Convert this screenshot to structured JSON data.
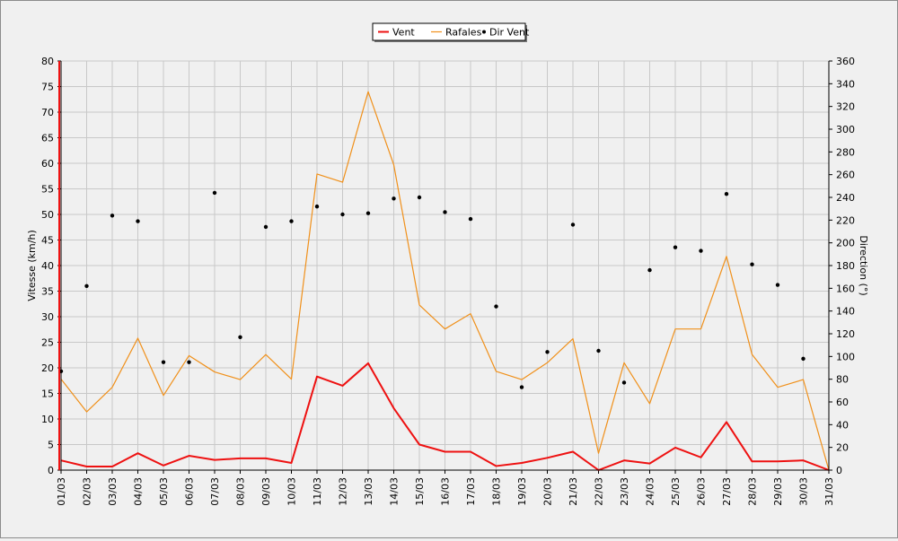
{
  "colors": {
    "vent": "#ee1111",
    "rafales": "#f0901a",
    "dir": "#000000",
    "grid": "#c8c8c8",
    "plot_bg": "#f0f0f0"
  },
  "chart_data": {
    "type": "line",
    "categories": [
      "01/03",
      "02/03",
      "03/03",
      "04/03",
      "05/03",
      "06/03",
      "07/03",
      "08/03",
      "09/03",
      "10/03",
      "11/03",
      "12/03",
      "13/03",
      "14/03",
      "15/03",
      "16/03",
      "17/03",
      "18/03",
      "19/03",
      "20/03",
      "21/03",
      "22/03",
      "23/03",
      "24/03",
      "25/03",
      "26/03",
      "27/03",
      "28/03",
      "29/03",
      "30/03",
      "31/03"
    ],
    "ylabel": "Vitesse (km/h)",
    "ylabel_right": "Direction (°)",
    "ylim": [
      0,
      80
    ],
    "ylim_right": [
      0,
      360
    ],
    "yticks": [
      0,
      5,
      10,
      15,
      20,
      25,
      30,
      35,
      40,
      45,
      50,
      55,
      60,
      65,
      70,
      75,
      80
    ],
    "yticks_right": [
      0,
      20,
      40,
      60,
      80,
      100,
      120,
      140,
      160,
      180,
      200,
      220,
      240,
      260,
      280,
      300,
      320,
      340,
      360
    ],
    "grid": true,
    "legend_position": "top-center",
    "series": [
      {
        "name": "Vent",
        "axis": "left",
        "style": "line",
        "values": [
          1.9,
          0.7,
          0.7,
          3.3,
          0.9,
          2.8,
          2.0,
          2.3,
          2.3,
          1.4,
          18.3,
          16.5,
          20.9,
          12.1,
          5.0,
          3.6,
          3.6,
          0.8,
          1.4,
          2.4,
          3.6,
          0.0,
          1.9,
          1.3,
          4.4,
          2.5,
          9.4,
          1.7,
          1.7,
          1.9,
          0.0
        ]
      },
      {
        "name": "Rafales",
        "axis": "left",
        "style": "line",
        "values": [
          17.8,
          11.4,
          16.2,
          25.8,
          14.6,
          22.4,
          19.2,
          17.7,
          22.6,
          17.8,
          57.9,
          56.3,
          74.0,
          59.7,
          32.3,
          27.6,
          30.6,
          19.3,
          17.7,
          21.0,
          25.7,
          3.3,
          21.0,
          13.0,
          27.6,
          27.6,
          41.8,
          22.6,
          16.2,
          17.7,
          0.0
        ]
      },
      {
        "name": "Dir Vent",
        "axis": "right",
        "style": "points",
        "values": [
          87,
          162,
          224,
          219,
          95,
          95,
          244,
          117,
          214,
          219,
          232,
          225,
          226,
          239,
          240,
          227,
          221,
          144,
          73,
          104,
          216,
          105,
          77,
          176,
          196,
          193,
          243,
          181,
          163,
          98,
          null
        ]
      }
    ]
  }
}
